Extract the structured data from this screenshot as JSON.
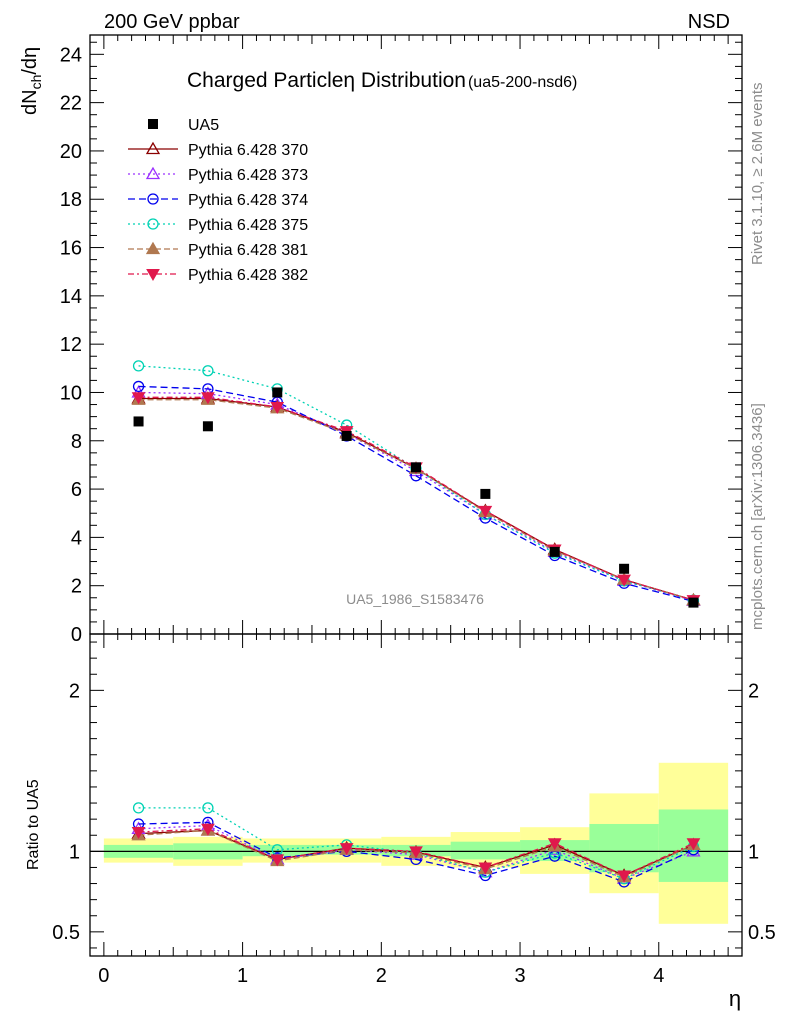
{
  "header": {
    "left_label": "200 GeV ppbar",
    "right_label": "NSD",
    "rivet_label": "Rivet 3.1.10, ≥ 2.6M events",
    "mcplots_label": "mcplots.cern.ch [arXiv:1306.3436]",
    "analysis_label": "UA5_1986_S1583476"
  },
  "chart_data": {
    "type": "scatter",
    "title": "Charged Particleη Distribution",
    "title_suffix": "(ua5-200-nsd6)",
    "ylabel_main": "dN",
    "ylabel_sub": "ch",
    "ylabel_tail": "/dη",
    "ylabel_ratio": "Ratio to UA5",
    "xlabel": "η",
    "xlim": [
      -0.1,
      4.6
    ],
    "ylim_main": [
      0,
      24.8
    ],
    "ylim_ratio": [
      0.35,
      2.35
    ],
    "x_ticks": [
      0,
      1,
      2,
      3,
      4
    ],
    "x_tick_labels": [
      "0",
      "1",
      "2",
      "3",
      "4"
    ],
    "y_ticks_main": [
      0,
      2,
      4,
      6,
      8,
      10,
      12,
      14,
      16,
      18,
      20,
      22,
      24
    ],
    "y_tick_labels_main": [
      "0",
      "2",
      "4",
      "6",
      "8",
      "10",
      "12",
      "14",
      "16",
      "18",
      "20",
      "22",
      "24"
    ],
    "y_ticks_ratio": [
      0.5,
      1,
      2
    ],
    "y_tick_labels_ratio": [
      "0.5",
      "1",
      "2"
    ],
    "grid": false,
    "legend_position": "top-left",
    "x": [
      0.25,
      0.75,
      1.25,
      1.75,
      2.25,
      2.75,
      3.25,
      3.75,
      4.25
    ],
    "data_series": {
      "name": "UA5",
      "values": [
        8.8,
        8.6,
        10.0,
        8.2,
        6.9,
        5.8,
        3.4,
        2.7,
        1.3
      ]
    },
    "band_edges": [
      0,
      0.5,
      1,
      1.5,
      2,
      2.5,
      3,
      3.5,
      4,
      4.5
    ],
    "band_inner": [
      [
        0.96,
        1.04
      ],
      [
        0.95,
        1.05
      ],
      [
        0.97,
        1.04
      ],
      [
        0.98,
        1.04
      ],
      [
        0.97,
        1.04
      ],
      [
        0.95,
        1.06
      ],
      [
        0.94,
        1.07
      ],
      [
        0.87,
        1.17
      ],
      [
        0.81,
        1.26
      ]
    ],
    "band_outer": [
      [
        0.93,
        1.08
      ],
      [
        0.91,
        1.09
      ],
      [
        0.93,
        1.08
      ],
      [
        0.93,
        1.08
      ],
      [
        0.91,
        1.09
      ],
      [
        0.9,
        1.12
      ],
      [
        0.86,
        1.15
      ],
      [
        0.74,
        1.36
      ],
      [
        0.55,
        1.55
      ]
    ],
    "series": [
      {
        "name": "Pythia 6.428 370",
        "color": "#8b0000",
        "marker": "triangle-up-open",
        "dash": "",
        "values": [
          9.75,
          9.75,
          9.4,
          8.35,
          6.85,
          5.1,
          3.5,
          2.25,
          1.4
        ],
        "ratio": [
          1.11,
          1.13,
          0.95,
          1.02,
          0.995,
          0.9,
          1.04,
          0.85,
          1.04
        ]
      },
      {
        "name": "Pythia 6.428 373",
        "color": "#9b30ff",
        "marker": "triangle-up-open",
        "dash": "2,3",
        "values": [
          10.0,
          9.95,
          9.5,
          8.3,
          6.75,
          4.95,
          3.4,
          2.2,
          1.38
        ],
        "ratio": [
          1.14,
          1.16,
          0.95,
          1.01,
          0.98,
          0.87,
          1.01,
          0.83,
          1.0
        ]
      },
      {
        "name": "Pythia 6.428 374",
        "color": "#0000ee",
        "marker": "circle-open",
        "dash": "7,4",
        "values": [
          10.25,
          10.15,
          9.6,
          8.2,
          6.55,
          4.8,
          3.25,
          2.1,
          1.35
        ],
        "ratio": [
          1.17,
          1.18,
          0.96,
          1.0,
          0.95,
          0.85,
          0.97,
          0.81,
          1.01
        ]
      },
      {
        "name": "Pythia 6.428 375",
        "color": "#00d2b4",
        "marker": "circle-open",
        "dash": "2,3",
        "values": [
          11.1,
          10.9,
          10.15,
          8.65,
          6.85,
          4.95,
          3.35,
          2.2,
          1.4
        ],
        "ratio": [
          1.27,
          1.27,
          1.01,
          1.04,
          0.99,
          0.87,
          0.99,
          0.83,
          1.03
        ]
      },
      {
        "name": "Pythia 6.428 381",
        "color": "#b07850",
        "marker": "triangle-up-filled",
        "dash": "6,3",
        "values": [
          9.7,
          9.7,
          9.35,
          8.3,
          6.85,
          5.05,
          3.45,
          2.25,
          1.4
        ],
        "ratio": [
          1.1,
          1.13,
          0.94,
          1.01,
          0.99,
          0.89,
          1.03,
          0.84,
          1.04
        ]
      },
      {
        "name": "Pythia 6.428 382",
        "color": "#e0184c",
        "marker": "triangle-down-filled",
        "dash": "6,3,2,3",
        "values": [
          9.8,
          9.8,
          9.4,
          8.4,
          6.9,
          5.1,
          3.5,
          2.25,
          1.4
        ],
        "ratio": [
          1.12,
          1.14,
          0.95,
          1.02,
          1.0,
          0.9,
          1.05,
          0.85,
          1.05
        ]
      }
    ]
  }
}
